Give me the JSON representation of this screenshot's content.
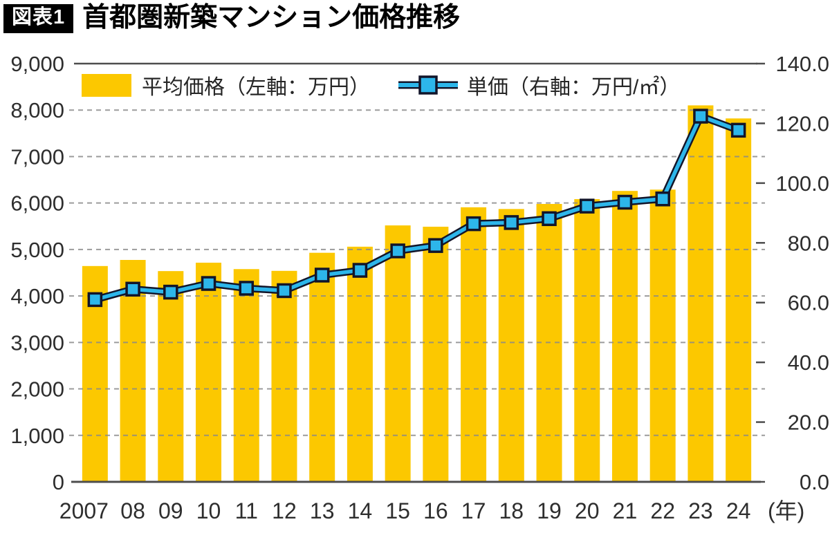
{
  "header": {
    "badge": "図表1",
    "title": "首都圏新築マンション価格推移"
  },
  "legend": {
    "bar_label": "平均価格（左軸：万円）",
    "line_label": "単価（右軸：万円/㎡）"
  },
  "chart_data": {
    "type": "bar+line combo",
    "title": "首都圏新築マンション価格推移",
    "categories": [
      "2007",
      "08",
      "09",
      "10",
      "11",
      "12",
      "13",
      "14",
      "15",
      "16",
      "17",
      "18",
      "19",
      "20",
      "21",
      "22",
      "23",
      "24"
    ],
    "x_axis": {
      "suffix_label": "(年)"
    },
    "left_axis": {
      "min": 0,
      "max": 9000,
      "tick_step": 1000,
      "tick_labels": [
        "0",
        "1,000",
        "2,000",
        "3,000",
        "4,000",
        "5,000",
        "6,000",
        "7,000",
        "8,000",
        "9,000"
      ]
    },
    "right_axis": {
      "min": 0,
      "max": 140,
      "tick_step": 20,
      "tick_labels": [
        "0.0",
        "20.0",
        "40.0",
        "60.0",
        "80.0",
        "100.0",
        "120.0",
        "140.0"
      ]
    },
    "series": [
      {
        "name": "平均価格（左軸：万円）",
        "type": "bar",
        "axis": "left",
        "unit": "万円",
        "color": "#FCC800",
        "values": [
          4644,
          4775,
          4535,
          4716,
          4578,
          4540,
          4929,
          5060,
          5518,
          5490,
          5908,
          5871,
          5980,
          6083,
          6260,
          6288,
          8101,
          7820
        ]
      },
      {
        "name": "単価（右軸：万円/㎡）",
        "type": "line",
        "axis": "right",
        "unit": "万円/㎡",
        "color": "#2DB6EA",
        "marker": "square",
        "values": [
          61.0,
          64.5,
          63.5,
          66.4,
          64.8,
          64.0,
          69.2,
          70.8,
          77.3,
          79.1,
          86.4,
          86.8,
          88.1,
          92.3,
          93.6,
          94.7,
          122.4,
          117.7
        ]
      }
    ],
    "grid": "horizontal-dashed",
    "legend_position": "top-left-inside"
  },
  "colors": {
    "bar": "#FCC800",
    "line": "#2DB6EA",
    "line_outline": "#12152A",
    "grid": "#8A8A8A",
    "axis": "#4D4D4D",
    "tick_text": "#2E2E2E",
    "badge_bg": "#000000",
    "badge_text": "#FFFFFF",
    "background": "#FFFFFF"
  }
}
